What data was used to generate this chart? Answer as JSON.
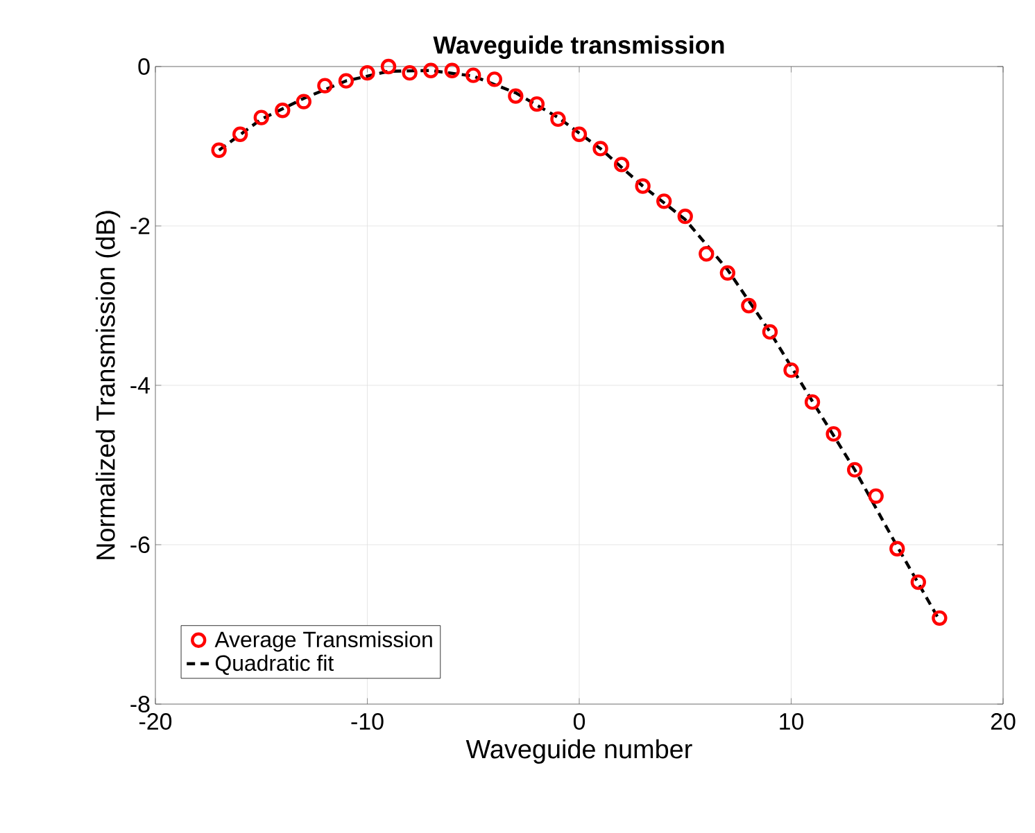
{
  "chart_data": {
    "type": "scatter",
    "title": "Waveguide transmission",
    "xlabel": "Waveguide number",
    "ylabel": "Normalized Transmission (dB)",
    "xlim": [
      -20,
      20
    ],
    "xticks": [
      -20,
      -10,
      0,
      10,
      20
    ],
    "ylim": [
      -8,
      0
    ],
    "yticks": [
      -8,
      -6,
      -4,
      -2,
      0
    ],
    "grid": true,
    "legend": "bottom left",
    "series": [
      {
        "name": "Average Transmission",
        "color": "#ff0000",
        "marker": "circle",
        "x": [
          -17,
          -16,
          -15,
          -14,
          -13,
          -12,
          -11,
          -10,
          -9,
          -8,
          -7,
          -6,
          -5,
          -4,
          -3,
          -2,
          -1,
          0,
          1,
          2,
          3,
          4,
          5,
          6,
          7,
          8,
          9,
          10,
          11,
          12,
          13,
          14,
          15,
          16,
          17
        ],
        "values": [
          -1.05,
          -0.85,
          -0.64,
          -0.55,
          -0.44,
          -0.24,
          -0.18,
          -0.08,
          0.0,
          -0.08,
          -0.05,
          -0.05,
          -0.11,
          -0.16,
          -0.37,
          -0.47,
          -0.66,
          -0.85,
          -1.03,
          -1.23,
          -1.5,
          -1.69,
          -1.88,
          -2.35,
          -2.59,
          -3.0,
          -3.33,
          -3.81,
          -4.21,
          -4.61,
          -5.06,
          -5.39,
          -6.05,
          -6.47,
          -6.92
        ]
      },
      {
        "name": "Quadratic fit",
        "type": "line",
        "color": "#000000",
        "line_style": "dashed",
        "marker": "none",
        "x": [
          -17,
          -15,
          -13,
          -11,
          -9,
          -7,
          -5,
          -3,
          -1,
          1,
          3,
          5,
          7,
          9,
          11,
          13,
          15,
          17
        ],
        "values": [
          -1.05,
          -0.66,
          -0.4,
          -0.18,
          -0.06,
          -0.05,
          -0.12,
          -0.33,
          -0.64,
          -1.03,
          -1.5,
          -1.92,
          -2.55,
          -3.33,
          -4.2,
          -5.06,
          -6.02,
          -6.95
        ]
      }
    ]
  }
}
